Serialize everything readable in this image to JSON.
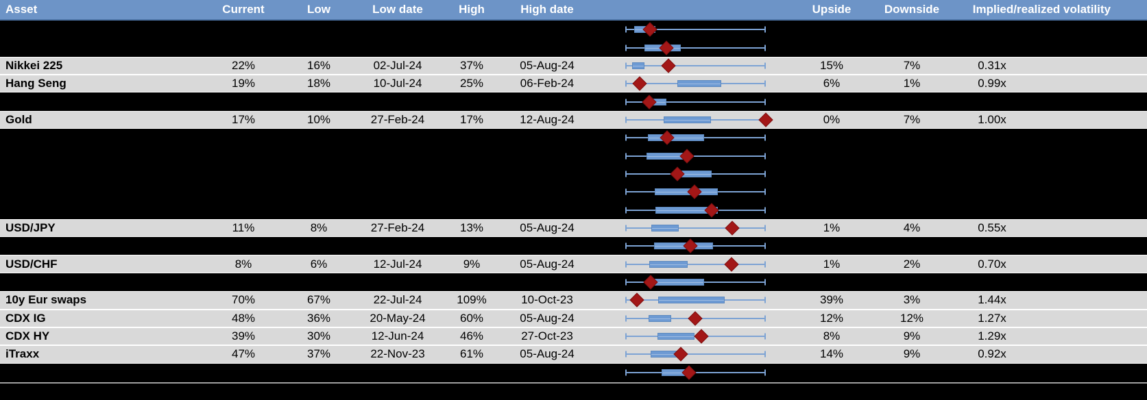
{
  "header": {
    "asset": "Asset",
    "current": "Current",
    "low": "Low",
    "low_date": "Low date",
    "high": "High",
    "high_date": "High date",
    "upside": "Upside",
    "downside": "Downside",
    "implied_realized_volatility": "Implied/realized volatility"
  },
  "colors": {
    "header_bg": "#6d94c7",
    "header_text": "#ffffff",
    "row_gray": "#d9d9d9",
    "row_black": "#000000",
    "box_fill": "#6d9ad3",
    "box_border": "#5d89bf",
    "whisker": "#7da3d4",
    "marker_red": "#a31717",
    "separator": "#a0a0a0"
  },
  "chart_data": {
    "type": "table",
    "note": "Each row has a horizontal box-whisker plot normalized to the asset low-high range; box_lo/box_hi/marker are fractions 0-1 of the whisker span; red diamond = current level; rows with style 'hidden' are blacked out in the source image.",
    "legend_position": "none",
    "grid": false,
    "rows": [
      {
        "style": "hidden",
        "box_lo": 0.063,
        "box_hi": 0.215,
        "marker": 0.176
      },
      {
        "style": "hidden",
        "box_lo": 0.137,
        "box_hi": 0.395,
        "marker": 0.293
      },
      {
        "style": "data",
        "asset": "Nikkei 225",
        "current": "22%",
        "low": "16%",
        "low_date": "02-Jul-24",
        "high": "37%",
        "high_date": "05-Aug-24",
        "upside": "15%",
        "downside": "7%",
        "implied_realized_vol": "0.31x",
        "box_lo": 0.049,
        "box_hi": 0.137,
        "marker": 0.307
      },
      {
        "style": "data",
        "asset": "Hang Seng",
        "current": "19%",
        "low": "18%",
        "low_date": "10-Jul-24",
        "high": "25%",
        "high_date": "06-Feb-24",
        "upside": "6%",
        "downside": "1%",
        "implied_realized_vol": "0.99x",
        "box_lo": 0.371,
        "box_hi": 0.683,
        "marker": 0.102
      },
      {
        "style": "hidden",
        "box_lo": 0.161,
        "box_hi": 0.293,
        "marker": 0.171
      },
      {
        "style": "data",
        "asset": "Gold",
        "current": "17%",
        "low": "10%",
        "low_date": "27-Feb-24",
        "high": "17%",
        "high_date": "12-Aug-24",
        "upside": "0%",
        "downside": "7%",
        "implied_realized_vol": "1.00x",
        "box_lo": 0.273,
        "box_hi": 0.61,
        "marker": 1.0
      },
      {
        "style": "hidden",
        "box_lo": 0.161,
        "box_hi": 0.561,
        "marker": 0.298
      },
      {
        "style": "hidden",
        "box_lo": 0.151,
        "box_hi": 0.468,
        "marker": 0.439
      },
      {
        "style": "hidden",
        "box_lo": 0.366,
        "box_hi": 0.615,
        "marker": 0.371
      },
      {
        "style": "hidden",
        "box_lo": 0.21,
        "box_hi": 0.659,
        "marker": 0.493
      },
      {
        "style": "hidden",
        "box_lo": 0.215,
        "box_hi": 0.659,
        "marker": 0.615
      },
      {
        "style": "data",
        "asset": "USD/JPY",
        "current": "11%",
        "low": "8%",
        "low_date": "27-Feb-24",
        "high": "13%",
        "high_date": "05-Aug-24",
        "upside": "1%",
        "downside": "4%",
        "implied_realized_vol": "0.55x",
        "box_lo": 0.185,
        "box_hi": 0.38,
        "marker": 0.76
      },
      {
        "style": "hidden",
        "box_lo": 0.205,
        "box_hi": 0.624,
        "marker": 0.463
      },
      {
        "style": "data",
        "asset": "USD/CHF",
        "current": "8%",
        "low": "6%",
        "low_date": "12-Jul-24",
        "high": "9%",
        "high_date": "05-Aug-24",
        "upside": "1%",
        "downside": "2%",
        "implied_realized_vol": "0.70x",
        "box_lo": 0.171,
        "box_hi": 0.444,
        "marker": 0.757
      },
      {
        "style": "hidden",
        "box_lo": 0.21,
        "box_hi": 0.561,
        "marker": 0.18
      },
      {
        "style": "data",
        "asset": "10y Eur swaps",
        "current": "70%",
        "low": "67%",
        "low_date": "22-Jul-24",
        "high": "109%",
        "high_date": "10-Oct-23",
        "upside": "39%",
        "downside": "3%",
        "implied_realized_vol": "1.44x",
        "box_lo": 0.234,
        "box_hi": 0.707,
        "marker": 0.083
      },
      {
        "style": "data",
        "asset": "CDX IG",
        "current": "48%",
        "low": "36%",
        "low_date": "20-May-24",
        "high": "60%",
        "high_date": "05-Aug-24",
        "upside": "12%",
        "downside": "12%",
        "implied_realized_vol": "1.27x",
        "box_lo": 0.166,
        "box_hi": 0.327,
        "marker": 0.498
      },
      {
        "style": "data",
        "asset": "CDX HY",
        "current": "39%",
        "low": "30%",
        "low_date": "12-Jun-24",
        "high": "46%",
        "high_date": "27-Oct-23",
        "upside": "8%",
        "downside": "9%",
        "implied_realized_vol": "1.29x",
        "box_lo": 0.229,
        "box_hi": 0.493,
        "marker": 0.541
      },
      {
        "style": "data",
        "asset": "iTraxx",
        "current": "47%",
        "low": "37%",
        "low_date": "22-Nov-23",
        "high": "61%",
        "high_date": "05-Aug-24",
        "upside": "14%",
        "downside": "9%",
        "implied_realized_vol": "0.92x",
        "box_lo": 0.18,
        "box_hi": 0.371,
        "marker": 0.395
      },
      {
        "style": "hidden",
        "box_lo": 0.259,
        "box_hi": 0.478,
        "marker": 0.454
      }
    ]
  }
}
